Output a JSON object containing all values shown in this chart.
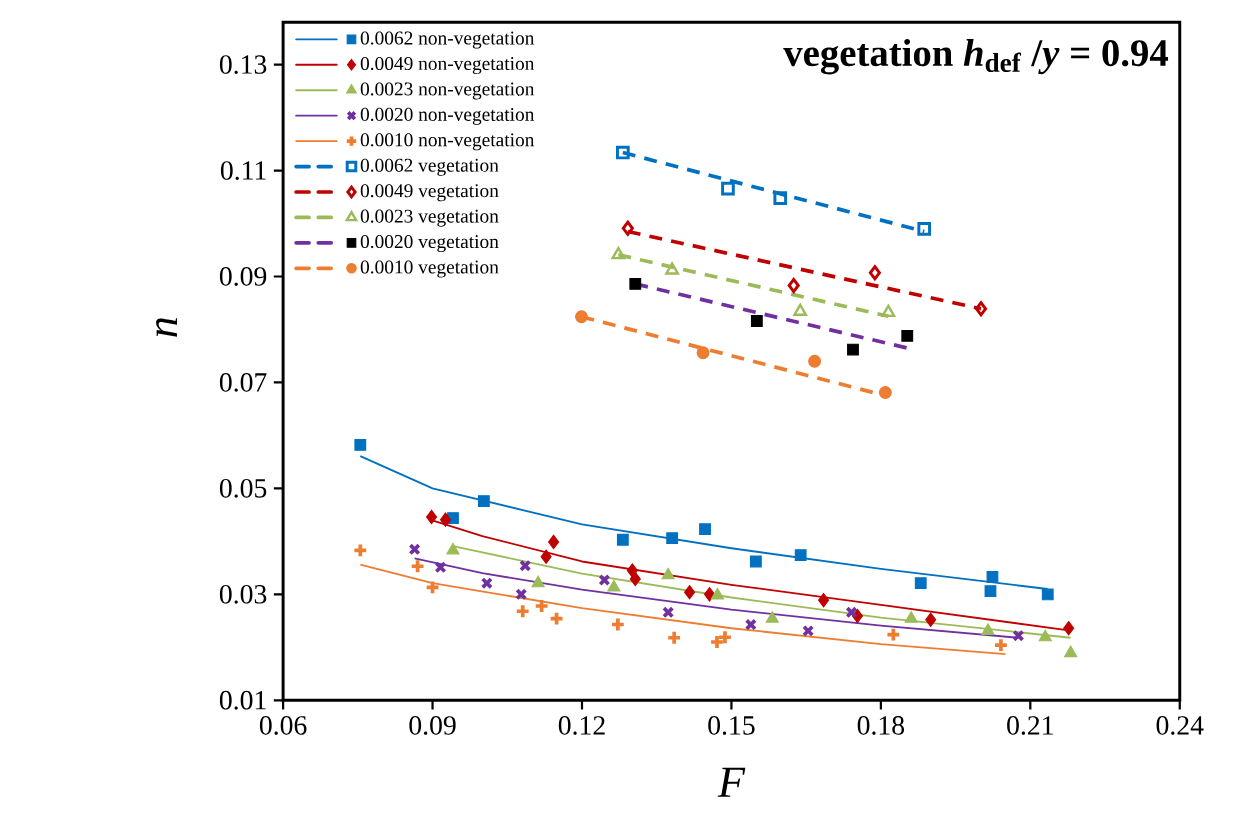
{
  "chart_data": {
    "type": "scatter",
    "title": "vegetation *h*$_{def}$ /*y* = 0.94",
    "xlabel": "F",
    "ylabel": "n",
    "xlim": [
      0.06,
      0.24
    ],
    "xticks": [
      0.06,
      0.09,
      0.12,
      0.15,
      0.18,
      0.21,
      0.24
    ],
    "ylim": [
      0.01,
      0.138
    ],
    "yticks": [
      0.01,
      0.03,
      0.05,
      0.07,
      0.09,
      0.11,
      0.13
    ],
    "legend": "top left",
    "series": [
      {
        "name": "0.0062 non-vegetation",
        "marker": "square",
        "color": "#0070c0",
        "x": [
          0.0755,
          0.0941,
          0.1003,
          0.1282,
          0.1381,
          0.1447,
          0.1549,
          0.1639,
          0.188,
          0.202,
          0.2024,
          0.2135
        ],
        "values": [
          0.0582,
          0.0444,
          0.0476,
          0.0403,
          0.0406,
          0.0423,
          0.0362,
          0.0374,
          0.0321,
          0.0306,
          0.0333,
          0.03
        ]
      },
      {
        "type": "line",
        "line_style": "solid",
        "color": "#0070c0",
        "x": [
          0.0755,
          0.09,
          0.12,
          0.15,
          0.18,
          0.2135
        ],
        "values": [
          0.0561,
          0.05,
          0.0432,
          0.0387,
          0.0348,
          0.031
        ]
      },
      {
        "name": "0.0049 non-vegetation",
        "marker": "diamond",
        "color": "#c00000",
        "x": [
          0.0898,
          0.0926,
          0.1128,
          0.1143,
          0.1301,
          0.1307,
          0.1416,
          0.1456,
          0.1685,
          0.1753,
          0.19,
          0.2177
        ],
        "values": [
          0.0446,
          0.0441,
          0.0371,
          0.0399,
          0.0345,
          0.0329,
          0.0304,
          0.03,
          0.0289,
          0.0259,
          0.0252,
          0.0236
        ]
      },
      {
        "type": "line",
        "line_style": "solid",
        "color": "#c00000",
        "x": [
          0.0898,
          0.1,
          0.12,
          0.15,
          0.18,
          0.2177
        ],
        "values": [
          0.044,
          0.041,
          0.0362,
          0.0318,
          0.028,
          0.0232
        ]
      },
      {
        "name": "0.0023 non-vegetation",
        "marker": "triangle",
        "color": "#9bbb59",
        "x": [
          0.0941,
          0.1112,
          0.1264,
          0.1373,
          0.1472,
          0.1582,
          0.1861,
          0.2015,
          0.213,
          0.2181
        ],
        "values": [
          0.0383,
          0.0321,
          0.0313,
          0.0336,
          0.0298,
          0.0254,
          0.0254,
          0.0231,
          0.0219,
          0.0189
        ]
      },
      {
        "type": "line",
        "line_style": "solid",
        "color": "#9bbb59",
        "x": [
          0.0941,
          0.12,
          0.15,
          0.18,
          0.2181
        ],
        "values": [
          0.0391,
          0.0339,
          0.0294,
          0.0256,
          0.0218
        ]
      },
      {
        "name": "0.0020 non-vegetation",
        "marker": "cross",
        "color": "#7030a0",
        "x": [
          0.0864,
          0.0916,
          0.1009,
          0.1078,
          0.1086,
          0.1245,
          0.1373,
          0.1539,
          0.1654,
          0.1741,
          0.2076
        ],
        "values": [
          0.0385,
          0.0351,
          0.0321,
          0.03,
          0.0354,
          0.0327,
          0.0266,
          0.0243,
          0.0231,
          0.0266,
          0.0222
        ]
      },
      {
        "type": "line",
        "line_style": "solid",
        "color": "#7030a0",
        "x": [
          0.0864,
          0.1,
          0.12,
          0.15,
          0.18,
          0.2076
        ],
        "values": [
          0.0368,
          0.034,
          0.0309,
          0.0271,
          0.0241,
          0.0218
        ]
      },
      {
        "name": "0.0010 non-vegetation",
        "marker": "plus",
        "color": "#ed7d31",
        "x": [
          0.0755,
          0.087,
          0.09,
          0.1081,
          0.1119,
          0.1149,
          0.1272,
          0.1385,
          0.1471,
          0.1487,
          0.1825,
          0.2041
        ],
        "values": [
          0.0383,
          0.0353,
          0.0313,
          0.0268,
          0.0278,
          0.0254,
          0.0243,
          0.0218,
          0.021,
          0.0219,
          0.0224,
          0.0204
        ]
      },
      {
        "type": "line",
        "line_style": "solid",
        "color": "#ed7d31",
        "x": [
          0.0755,
          0.09,
          0.12,
          0.15,
          0.18,
          0.205
        ],
        "values": [
          0.0356,
          0.0321,
          0.0274,
          0.0236,
          0.0206,
          0.0187
        ]
      },
      {
        "name": "0.0062 vegetation",
        "marker": "square_open",
        "color": "#0070c0",
        "x": [
          0.1282,
          0.1493,
          0.1598,
          0.1887
        ],
        "values": [
          0.1134,
          0.1066,
          0.1048,
          0.099
        ]
      },
      {
        "type": "line",
        "line_style": "dashed",
        "color": "#0070c0",
        "x": [
          0.1282,
          0.1887
        ],
        "values": [
          0.1134,
          0.0985
        ]
      },
      {
        "name": "0.0049 vegetation",
        "marker": "diamond_open",
        "color": "#c00000",
        "x": [
          0.1292,
          0.1625,
          0.1788,
          0.2001
        ],
        "values": [
          0.0991,
          0.0883,
          0.0907,
          0.0839
        ]
      },
      {
        "type": "line",
        "line_style": "dashed",
        "color": "#c00000",
        "x": [
          0.1292,
          0.2001
        ],
        "values": [
          0.0985,
          0.0839
        ]
      },
      {
        "name": "0.0023 vegetation",
        "marker": "triangle_open",
        "color": "#9bbb59",
        "x": [
          0.1273,
          0.1381,
          0.1638,
          0.1815
        ],
        "values": [
          0.0941,
          0.0912,
          0.0834,
          0.0832
        ]
      },
      {
        "type": "line",
        "line_style": "dashed",
        "color": "#9bbb59",
        "x": [
          0.1273,
          0.1815
        ],
        "values": [
          0.0941,
          0.0825
        ]
      },
      {
        "name": "0.0020 vegetation",
        "marker": "square",
        "color": "#000000",
        "x": [
          0.1307,
          0.1551,
          0.1744,
          0.1853
        ],
        "values": [
          0.0886,
          0.0816,
          0.0762,
          0.0788
        ]
      },
      {
        "type": "line",
        "line_style": "dashed",
        "color": "#7030a0",
        "x": [
          0.1307,
          0.1853
        ],
        "values": [
          0.0886,
          0.0765
        ]
      },
      {
        "name": "0.0010 vegetation",
        "marker": "circle",
        "color": "#ed7d31",
        "x": [
          0.1199,
          0.1443,
          0.1667,
          0.1809
        ],
        "values": [
          0.0824,
          0.0756,
          0.074,
          0.0681
        ]
      },
      {
        "type": "line",
        "line_style": "dashed",
        "color": "#ed7d31",
        "x": [
          0.1199,
          0.1809
        ],
        "values": [
          0.0824,
          0.0675
        ]
      }
    ]
  }
}
